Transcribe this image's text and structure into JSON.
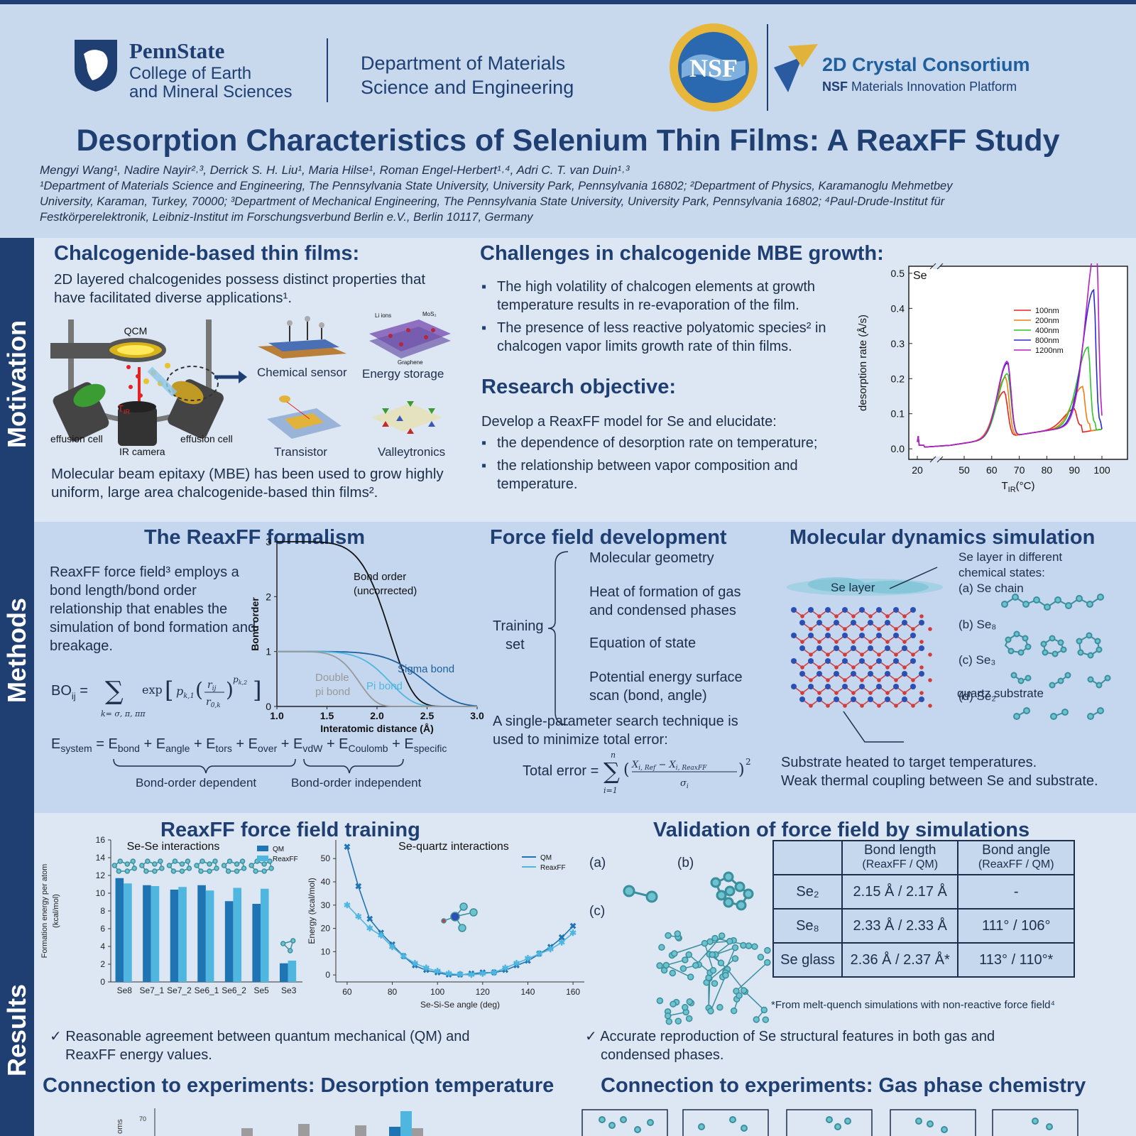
{
  "header": {
    "psu_name": "PennState",
    "psu_college_1": "College of Earth",
    "psu_college_2": "and Mineral Sciences",
    "dept_1": "Department of Materials",
    "dept_2": "Science and Engineering",
    "nsf": "NSF",
    "consortium": "2D Crystal Consortium",
    "consortium_sub_bold": "NSF",
    "consortium_sub": " Materials Innovation Platform",
    "title": "Desorption Characteristics of Selenium Thin Films: A ReaxFF Study",
    "authors": "Mengyi Wang¹, Nadire Nayir²˒³, Derrick S. H. Liu¹, Maria Hilse¹, Roman Engel-Herbert¹˒⁴, Adri C. T. van Duin¹˒³",
    "affil_1": "¹Department of Materials Science and Engineering, The Pennsylvania State University, University Park, Pennsylvania 16802; ²Department of Physics, Karamanoglu Mehmetbey",
    "affil_2": "University, Karaman, Turkey, 70000; ³Department of Mechanical Engineering, The Pennsylvania State University, University Park, Pennsylvania 16802; ⁴Paul-Drude-Institut für",
    "affil_3": "Festkörperelektronik, Leibniz-Institut im Forschungsverbund Berlin e.V., Berlin 10117, Germany"
  },
  "sidebar": {
    "motivation": "Motivation",
    "methods": "Methods",
    "results": "Results"
  },
  "motivation": {
    "chalc_title": "Chalcogenide-based thin films:",
    "chalc_text_1": "2D layered chalcogenides possess distinct properties that",
    "chalc_text_2": "have facilitated diverse applications¹.",
    "qcm": "QCM",
    "effusion_left": "effusion cell",
    "effusion_right": "effusion cell",
    "ir_camera": "IR camera",
    "tir": "T",
    "tir_sub": "IR",
    "app_1": "Chemical sensor",
    "app_2": "Energy storage",
    "app_3": "Transistor",
    "app_4": "Valleytronics",
    "mos2": "MoS₂",
    "li_ions": "Li ions",
    "graphene": "Graphene",
    "mbe_1": "Molecular beam epitaxy (MBE) has been used to grow highly",
    "mbe_2": "uniform, large area chalcogenide-based thin films².",
    "chall_title": "Challenges in chalcogenide MBE growth:",
    "chall_1": "The high volatility of chalcogen elements at growth temperature results in re-evaporation of the film.",
    "chall_2": "The presence of less reactive polyatomic species² in chalcogen vapor limits growth rate of thin films.",
    "obj_title": "Research objective:",
    "obj_intro": "Develop a ReaxFF model for Se and elucidate:",
    "obj_1": "the dependence of desorption rate on temperature;",
    "obj_2": "the relationship between vapor composition and temperature."
  },
  "methods": {
    "reax_title": "The ReaxFF formalism",
    "reax_text": "ReaxFF force field³ employs a bond length/bond order relationship that enables the simulation of bond formation and breakage.",
    "bo_eq": "BO",
    "bo_sub": "ij",
    "esystem": "E",
    "esystem_sub": "system",
    "e_terms": "= E_bond + E_angle + E_tors + E_over + E_vdW + E_Coulomb + E_specific",
    "bo_dep": "Bond-order dependent",
    "bo_indep": "Bond-order independent",
    "ff_title": "Force field development",
    "training": "Training",
    "set": "set",
    "ff_1": "Molecular geometry",
    "ff_2a": "Heat of formation of gas",
    "ff_2b": "and condensed phases",
    "ff_3": "Equation of state",
    "ff_4a": "Potential energy surface",
    "ff_4b": "scan (bond, angle)",
    "search_1": "A single-parameter search technique is",
    "search_2": "used to minimize total error:",
    "total_error": "Total error =",
    "md_title": "Molecular dynamics simulation",
    "se_layer": "Se layer",
    "se_states_1": "Se layer in different",
    "se_states_2": "chemical states:",
    "state_a": "(a)  Se chain",
    "state_b": "(b)  Se₈",
    "state_c": "(c)  Se₃",
    "state_d": "(d)  Se₂",
    "quartz": "quartz substrate",
    "heated_1": "Substrate heated to target temperatures.",
    "heated_2": "Weak thermal coupling between Se and substrate."
  },
  "results": {
    "train_title": "ReaxFF force field training",
    "val_title": "Validation of force field by simulations",
    "check_1a": "✓ Reasonable agreement between quantum mechanical (QM) and",
    "check_1b": "ReaxFF energy values.",
    "check_2a": "✓ Accurate reproduction of Se structural features in both gas and",
    "check_2b": "condensed phases.",
    "conn_1": "Connection to experiments: Desorption temperature",
    "conn_2": "Connection to experiments: Gas phase chemistry",
    "val_a": "(a)",
    "val_b": "(b)",
    "val_c": "(c)",
    "footnote": "*From melt-quench simulations with non-reactive force field⁴",
    "table_head": [
      "",
      "Bond length\n(ReaxFF / QM)",
      "Bond angle\n(ReaxFF / QM)"
    ],
    "table_rows": [
      {
        "name": "Se₂",
        "bl": "2.15 Å / 2.17 Å",
        "ba": "-"
      },
      {
        "name": "Se₈",
        "bl": "2.33 Å / 2.33 Å",
        "ba": "111° / 106°"
      },
      {
        "name": "Se glass",
        "bl": "2.36 Å / 2.37 Å*",
        "ba": "113° / 110°*"
      }
    ],
    "bottom_tick": "70",
    "bottom_ylabel": "oms"
  },
  "colors": {
    "navy": "#1f3f72",
    "qm": "#1f74b4",
    "reaxff": "#4fb6e0"
  },
  "chart_data": [
    {
      "type": "line",
      "label": "Se",
      "xlabel": "T_IR(°C)",
      "ylabel": "desorption rate (Å/s)",
      "xticks": [
        "20",
        "50",
        "60",
        "70",
        "80",
        "90",
        "100"
      ],
      "yticks": [
        "0.0",
        "0.1",
        "0.2",
        "0.3",
        "0.4",
        "0.5"
      ],
      "ylim": [
        -0.03,
        0.52
      ],
      "series": [
        {
          "name": "100nm",
          "color": "#e8231d",
          "peak1": 0.13,
          "peak2": 0.05,
          "t2": 90
        },
        {
          "name": "200nm",
          "color": "#f07f0d",
          "peak1": 0.17,
          "peak2": 0.11,
          "t2": 93
        },
        {
          "name": "400nm",
          "color": "#2ec42a",
          "peak1": 0.18,
          "peak2": 0.22,
          "t2": 95
        },
        {
          "name": "800nm",
          "color": "#2a2ad6",
          "peak1": 0.21,
          "peak2": 0.38,
          "t2": 97
        },
        {
          "name": "1200nm",
          "color": "#b51ec4",
          "peak1": 0.215,
          "peak2": 0.51,
          "t2": 98
        }
      ]
    },
    {
      "type": "line",
      "xlabel": "Interatomic distance (Å)",
      "ylabel": "Bond order",
      "xlim": [
        1.0,
        3.0
      ],
      "ylim": [
        0,
        3
      ],
      "xticks": [
        "1.0",
        "1.5",
        "2.0",
        "2.5",
        "3.0"
      ],
      "yticks": [
        "0",
        "1",
        "2",
        "3"
      ],
      "series": [
        {
          "name": "Bond order\n(uncorrected)",
          "label_1": "Bond order",
          "label_2": "(uncorrected)",
          "color": "#111111",
          "r0": 1.75,
          "start": 3.0,
          "pow": 6
        },
        {
          "name": "Sigma bond",
          "color": "#1f5f9e",
          "r0": 2.1,
          "start": 1.0,
          "pow": 6
        },
        {
          "name": "Pi bond",
          "color": "#4fb6e0",
          "r0": 1.75,
          "start": 1.0,
          "pow": 6
        },
        {
          "name": "Double pi bond",
          "label_1": "Double",
          "label_2": "pi bond",
          "color": "#999999",
          "r0": 1.45,
          "start": 1.0,
          "pow": 6
        }
      ]
    },
    {
      "type": "bar",
      "title": "Se-Se interactions",
      "ylabel": "Formation energy per atom (kcal/mol)",
      "ylabel_1": "Formation energy per atom",
      "ylabel_2": "(kcal/mol)",
      "ylim": [
        0,
        16
      ],
      "yticks": [
        "0",
        "2",
        "4",
        "6",
        "8",
        "10",
        "12",
        "14",
        "16"
      ],
      "categories": [
        "Se8",
        "Se7_1",
        "Se7_2",
        "Se6_1",
        "Se6_2",
        "Se5",
        "Se3"
      ],
      "series": [
        {
          "name": "QM",
          "values": [
            11.7,
            10.9,
            10.4,
            10.9,
            9.1,
            8.8,
            2.1
          ]
        },
        {
          "name": "ReaxFF",
          "values": [
            11.1,
            10.8,
            10.7,
            10.3,
            10.6,
            10.5,
            2.4
          ]
        }
      ]
    },
    {
      "type": "line",
      "title": "Se-quartz interactions",
      "xlabel": "Se-Si-Se angle (deg)",
      "ylabel": "Energy (kcal/mol)",
      "xlim": [
        55,
        165
      ],
      "ylim": [
        -3,
        58
      ],
      "xticks": [
        "60",
        "80",
        "100",
        "120",
        "140",
        "160"
      ],
      "yticks": [
        "0",
        "10",
        "20",
        "30",
        "40",
        "50"
      ],
      "x": [
        60,
        65,
        70,
        75,
        80,
        85,
        90,
        95,
        100,
        105,
        110,
        115,
        120,
        125,
        130,
        135,
        140,
        145,
        150,
        155,
        160
      ],
      "series": [
        {
          "name": "QM",
          "values": [
            55,
            38,
            24,
            18,
            13,
            8,
            4,
            2,
            1,
            0,
            0,
            0.5,
            1,
            1,
            2,
            4,
            6,
            9,
            12,
            16,
            21
          ]
        },
        {
          "name": "ReaxFF",
          "values": [
            30,
            25,
            20,
            17,
            12,
            8,
            5,
            3,
            1.5,
            0.5,
            0.2,
            0,
            0.5,
            1,
            3,
            5,
            7,
            9,
            11,
            14,
            18
          ]
        }
      ]
    }
  ]
}
